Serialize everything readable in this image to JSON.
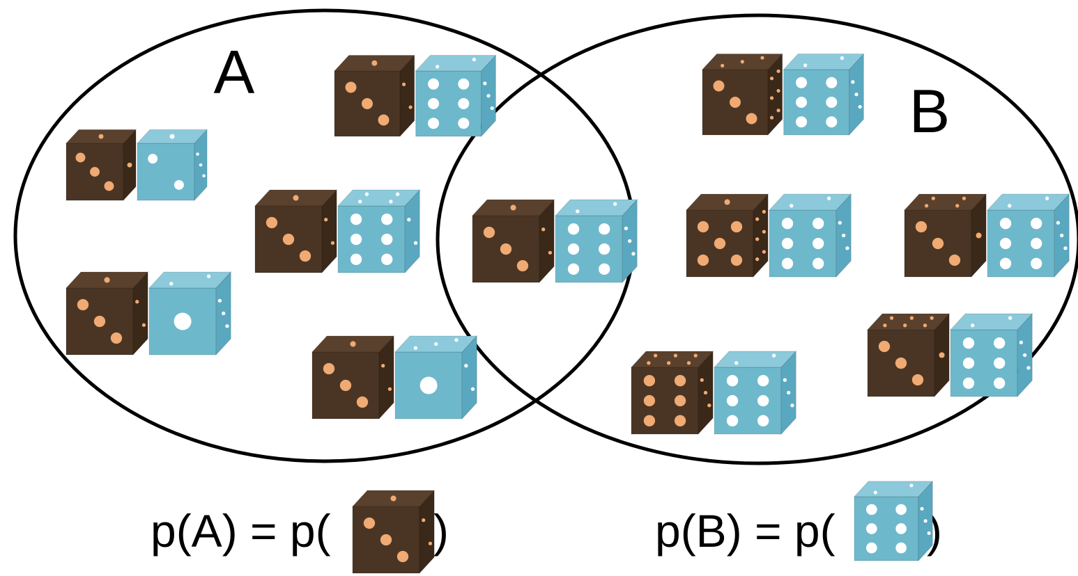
{
  "diagram": {
    "type": "venn",
    "colors": {
      "outline": "#000000",
      "brown_face": "#4a3524",
      "brown_side": "#3a2819",
      "brown_top": "#5a412d",
      "brown_pip": "#f0aa73",
      "blue_face": "#6eb8cc",
      "blue_side": "#5aa8bf",
      "blue_top": "#8ccadb",
      "blue_pip": "#ffffff"
    },
    "sets": [
      {
        "id": "A",
        "label": "A"
      },
      {
        "id": "B",
        "label": "B"
      }
    ],
    "dice_pairs": [
      {
        "region": "A only",
        "brown_top": 1,
        "brown_front": 3,
        "brown_side": 1,
        "blue_top": 1,
        "blue_front": 2,
        "blue_side": 3
      },
      {
        "region": "A only",
        "brown_top": 1,
        "brown_front": 3,
        "brown_side": 2,
        "blue_top": 2,
        "blue_front": 6,
        "blue_side": 3
      },
      {
        "region": "A only",
        "brown_top": 1,
        "brown_front": 3,
        "brown_side": 2,
        "blue_top": 4,
        "blue_front": 6,
        "blue_side": 2
      },
      {
        "region": "A only",
        "brown_top": 1,
        "brown_front": 3,
        "brown_side": 2,
        "blue_top": 2,
        "blue_front": 1,
        "blue_side": 3
      },
      {
        "region": "A only",
        "brown_top": 1,
        "brown_front": 3,
        "brown_side": 2,
        "blue_top": 3,
        "blue_front": 1,
        "blue_side": 2
      },
      {
        "region": "A and B",
        "brown_top": 1,
        "brown_front": 3,
        "brown_side": 2,
        "blue_top": 2,
        "blue_front": 6,
        "blue_side": 3
      },
      {
        "region": "B only",
        "brown_top": 3,
        "brown_front": 3,
        "brown_side": 6,
        "blue_top": 2,
        "blue_front": 6,
        "blue_side": 3
      },
      {
        "region": "B only",
        "brown_top": 1,
        "brown_front": 5,
        "brown_side": 6,
        "blue_top": 2,
        "blue_front": 6,
        "blue_side": 3
      },
      {
        "region": "B only",
        "brown_top": 4,
        "brown_front": 3,
        "brown_side": 1,
        "blue_top": 2,
        "blue_front": 6,
        "blue_side": 3
      },
      {
        "region": "B only",
        "brown_top": 6,
        "brown_front": 6,
        "brown_side": 3,
        "blue_top": 2,
        "blue_front": 6,
        "blue_side": 3
      },
      {
        "region": "B only",
        "brown_top": 6,
        "brown_front": 3,
        "brown_side": 1,
        "blue_top": 2,
        "blue_front": 6,
        "blue_side": 3
      }
    ]
  },
  "formulas": [
    {
      "prefix": "p(A) = p(",
      "suffix": ")",
      "die": {
        "color": "brown",
        "top": 1,
        "front": 3,
        "side": 2
      }
    },
    {
      "prefix": "p(B) = p(",
      "suffix": " )",
      "die": {
        "color": "blue",
        "top": 2,
        "front": 6,
        "side": 3
      }
    }
  ]
}
